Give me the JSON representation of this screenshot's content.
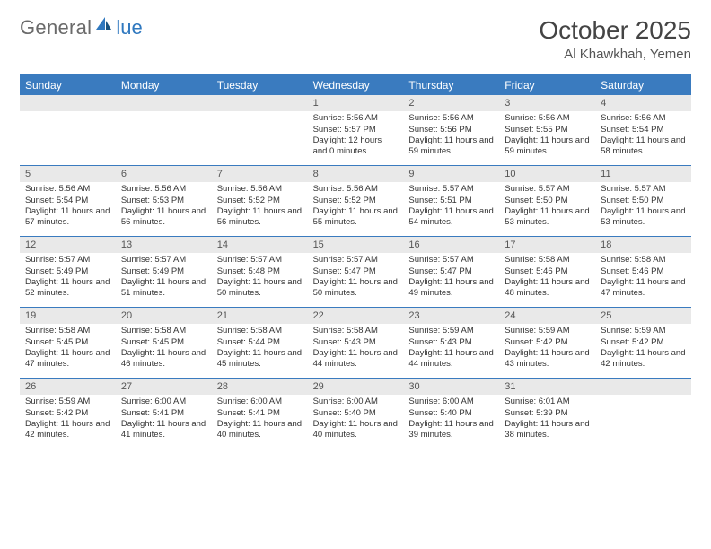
{
  "logo": {
    "general": "General",
    "blue": "lue"
  },
  "title": "October 2025",
  "location": "Al Khawkhah, Yemen",
  "day_names": [
    "Sunday",
    "Monday",
    "Tuesday",
    "Wednesday",
    "Thursday",
    "Friday",
    "Saturday"
  ],
  "colors": {
    "header_bg": "#3a7bbf",
    "header_text": "#ffffff",
    "border": "#3a7bbf",
    "date_bg": "#e9e9e9",
    "logo_blue": "#2f78bf"
  },
  "weeks": [
    [
      {
        "date": "",
        "sunrise": "",
        "sunset": "",
        "daylight": ""
      },
      {
        "date": "",
        "sunrise": "",
        "sunset": "",
        "daylight": ""
      },
      {
        "date": "",
        "sunrise": "",
        "sunset": "",
        "daylight": ""
      },
      {
        "date": "1",
        "sunrise": "Sunrise: 5:56 AM",
        "sunset": "Sunset: 5:57 PM",
        "daylight": "Daylight: 12 hours and 0 minutes."
      },
      {
        "date": "2",
        "sunrise": "Sunrise: 5:56 AM",
        "sunset": "Sunset: 5:56 PM",
        "daylight": "Daylight: 11 hours and 59 minutes."
      },
      {
        "date": "3",
        "sunrise": "Sunrise: 5:56 AM",
        "sunset": "Sunset: 5:55 PM",
        "daylight": "Daylight: 11 hours and 59 minutes."
      },
      {
        "date": "4",
        "sunrise": "Sunrise: 5:56 AM",
        "sunset": "Sunset: 5:54 PM",
        "daylight": "Daylight: 11 hours and 58 minutes."
      }
    ],
    [
      {
        "date": "5",
        "sunrise": "Sunrise: 5:56 AM",
        "sunset": "Sunset: 5:54 PM",
        "daylight": "Daylight: 11 hours and 57 minutes."
      },
      {
        "date": "6",
        "sunrise": "Sunrise: 5:56 AM",
        "sunset": "Sunset: 5:53 PM",
        "daylight": "Daylight: 11 hours and 56 minutes."
      },
      {
        "date": "7",
        "sunrise": "Sunrise: 5:56 AM",
        "sunset": "Sunset: 5:52 PM",
        "daylight": "Daylight: 11 hours and 56 minutes."
      },
      {
        "date": "8",
        "sunrise": "Sunrise: 5:56 AM",
        "sunset": "Sunset: 5:52 PM",
        "daylight": "Daylight: 11 hours and 55 minutes."
      },
      {
        "date": "9",
        "sunrise": "Sunrise: 5:57 AM",
        "sunset": "Sunset: 5:51 PM",
        "daylight": "Daylight: 11 hours and 54 minutes."
      },
      {
        "date": "10",
        "sunrise": "Sunrise: 5:57 AM",
        "sunset": "Sunset: 5:50 PM",
        "daylight": "Daylight: 11 hours and 53 minutes."
      },
      {
        "date": "11",
        "sunrise": "Sunrise: 5:57 AM",
        "sunset": "Sunset: 5:50 PM",
        "daylight": "Daylight: 11 hours and 53 minutes."
      }
    ],
    [
      {
        "date": "12",
        "sunrise": "Sunrise: 5:57 AM",
        "sunset": "Sunset: 5:49 PM",
        "daylight": "Daylight: 11 hours and 52 minutes."
      },
      {
        "date": "13",
        "sunrise": "Sunrise: 5:57 AM",
        "sunset": "Sunset: 5:49 PM",
        "daylight": "Daylight: 11 hours and 51 minutes."
      },
      {
        "date": "14",
        "sunrise": "Sunrise: 5:57 AM",
        "sunset": "Sunset: 5:48 PM",
        "daylight": "Daylight: 11 hours and 50 minutes."
      },
      {
        "date": "15",
        "sunrise": "Sunrise: 5:57 AM",
        "sunset": "Sunset: 5:47 PM",
        "daylight": "Daylight: 11 hours and 50 minutes."
      },
      {
        "date": "16",
        "sunrise": "Sunrise: 5:57 AM",
        "sunset": "Sunset: 5:47 PM",
        "daylight": "Daylight: 11 hours and 49 minutes."
      },
      {
        "date": "17",
        "sunrise": "Sunrise: 5:58 AM",
        "sunset": "Sunset: 5:46 PM",
        "daylight": "Daylight: 11 hours and 48 minutes."
      },
      {
        "date": "18",
        "sunrise": "Sunrise: 5:58 AM",
        "sunset": "Sunset: 5:46 PM",
        "daylight": "Daylight: 11 hours and 47 minutes."
      }
    ],
    [
      {
        "date": "19",
        "sunrise": "Sunrise: 5:58 AM",
        "sunset": "Sunset: 5:45 PM",
        "daylight": "Daylight: 11 hours and 47 minutes."
      },
      {
        "date": "20",
        "sunrise": "Sunrise: 5:58 AM",
        "sunset": "Sunset: 5:45 PM",
        "daylight": "Daylight: 11 hours and 46 minutes."
      },
      {
        "date": "21",
        "sunrise": "Sunrise: 5:58 AM",
        "sunset": "Sunset: 5:44 PM",
        "daylight": "Daylight: 11 hours and 45 minutes."
      },
      {
        "date": "22",
        "sunrise": "Sunrise: 5:58 AM",
        "sunset": "Sunset: 5:43 PM",
        "daylight": "Daylight: 11 hours and 44 minutes."
      },
      {
        "date": "23",
        "sunrise": "Sunrise: 5:59 AM",
        "sunset": "Sunset: 5:43 PM",
        "daylight": "Daylight: 11 hours and 44 minutes."
      },
      {
        "date": "24",
        "sunrise": "Sunrise: 5:59 AM",
        "sunset": "Sunset: 5:42 PM",
        "daylight": "Daylight: 11 hours and 43 minutes."
      },
      {
        "date": "25",
        "sunrise": "Sunrise: 5:59 AM",
        "sunset": "Sunset: 5:42 PM",
        "daylight": "Daylight: 11 hours and 42 minutes."
      }
    ],
    [
      {
        "date": "26",
        "sunrise": "Sunrise: 5:59 AM",
        "sunset": "Sunset: 5:42 PM",
        "daylight": "Daylight: 11 hours and 42 minutes."
      },
      {
        "date": "27",
        "sunrise": "Sunrise: 6:00 AM",
        "sunset": "Sunset: 5:41 PM",
        "daylight": "Daylight: 11 hours and 41 minutes."
      },
      {
        "date": "28",
        "sunrise": "Sunrise: 6:00 AM",
        "sunset": "Sunset: 5:41 PM",
        "daylight": "Daylight: 11 hours and 40 minutes."
      },
      {
        "date": "29",
        "sunrise": "Sunrise: 6:00 AM",
        "sunset": "Sunset: 5:40 PM",
        "daylight": "Daylight: 11 hours and 40 minutes."
      },
      {
        "date": "30",
        "sunrise": "Sunrise: 6:00 AM",
        "sunset": "Sunset: 5:40 PM",
        "daylight": "Daylight: 11 hours and 39 minutes."
      },
      {
        "date": "31",
        "sunrise": "Sunrise: 6:01 AM",
        "sunset": "Sunset: 5:39 PM",
        "daylight": "Daylight: 11 hours and 38 minutes."
      },
      {
        "date": "",
        "sunrise": "",
        "sunset": "",
        "daylight": ""
      }
    ]
  ]
}
